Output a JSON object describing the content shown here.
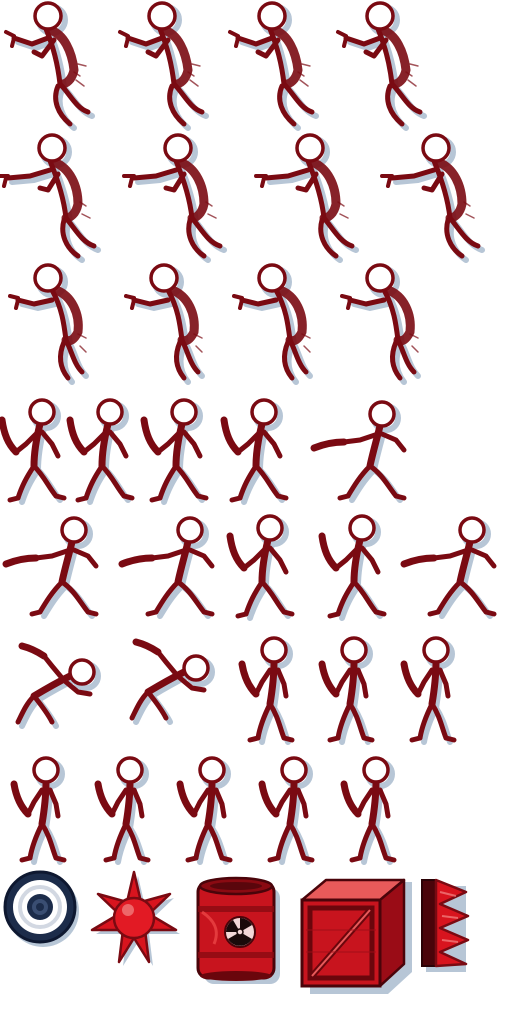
{
  "sheet": {
    "colors": {
      "ink": "#7a0a12",
      "ink_dark": "#4a040a",
      "red": "#d8141e",
      "red_light": "#f04a4a",
      "shadow": "#b7c6d6",
      "paper": "#ffffff",
      "navy": "#1c2c4a"
    },
    "rows": [
      {
        "name": "jetpack-gun-row-1",
        "frames": 4,
        "kind": "jetpack"
      },
      {
        "name": "jetpack-gun-row-2",
        "frames": 4,
        "kind": "jetpack-aim"
      },
      {
        "name": "jetpack-gun-row-3",
        "frames": 4,
        "kind": "jetpack-hunch"
      },
      {
        "name": "machete-attack-row-1",
        "frames": 5,
        "kind": "machete-swing"
      },
      {
        "name": "machete-attack-row-2",
        "frames": 5,
        "kind": "machete-lunge"
      },
      {
        "name": "machete-hit-row",
        "frames": 5,
        "kind": "machete-fall"
      },
      {
        "name": "machete-idle-row",
        "frames": 5,
        "kind": "machete-idle"
      }
    ],
    "items": [
      {
        "name": "shield-disc-icon"
      },
      {
        "name": "spiked-mine-icon"
      },
      {
        "name": "radioactive-barrel-icon"
      },
      {
        "name": "wooden-crate-icon"
      },
      {
        "name": "spike-trap-icon"
      }
    ]
  }
}
